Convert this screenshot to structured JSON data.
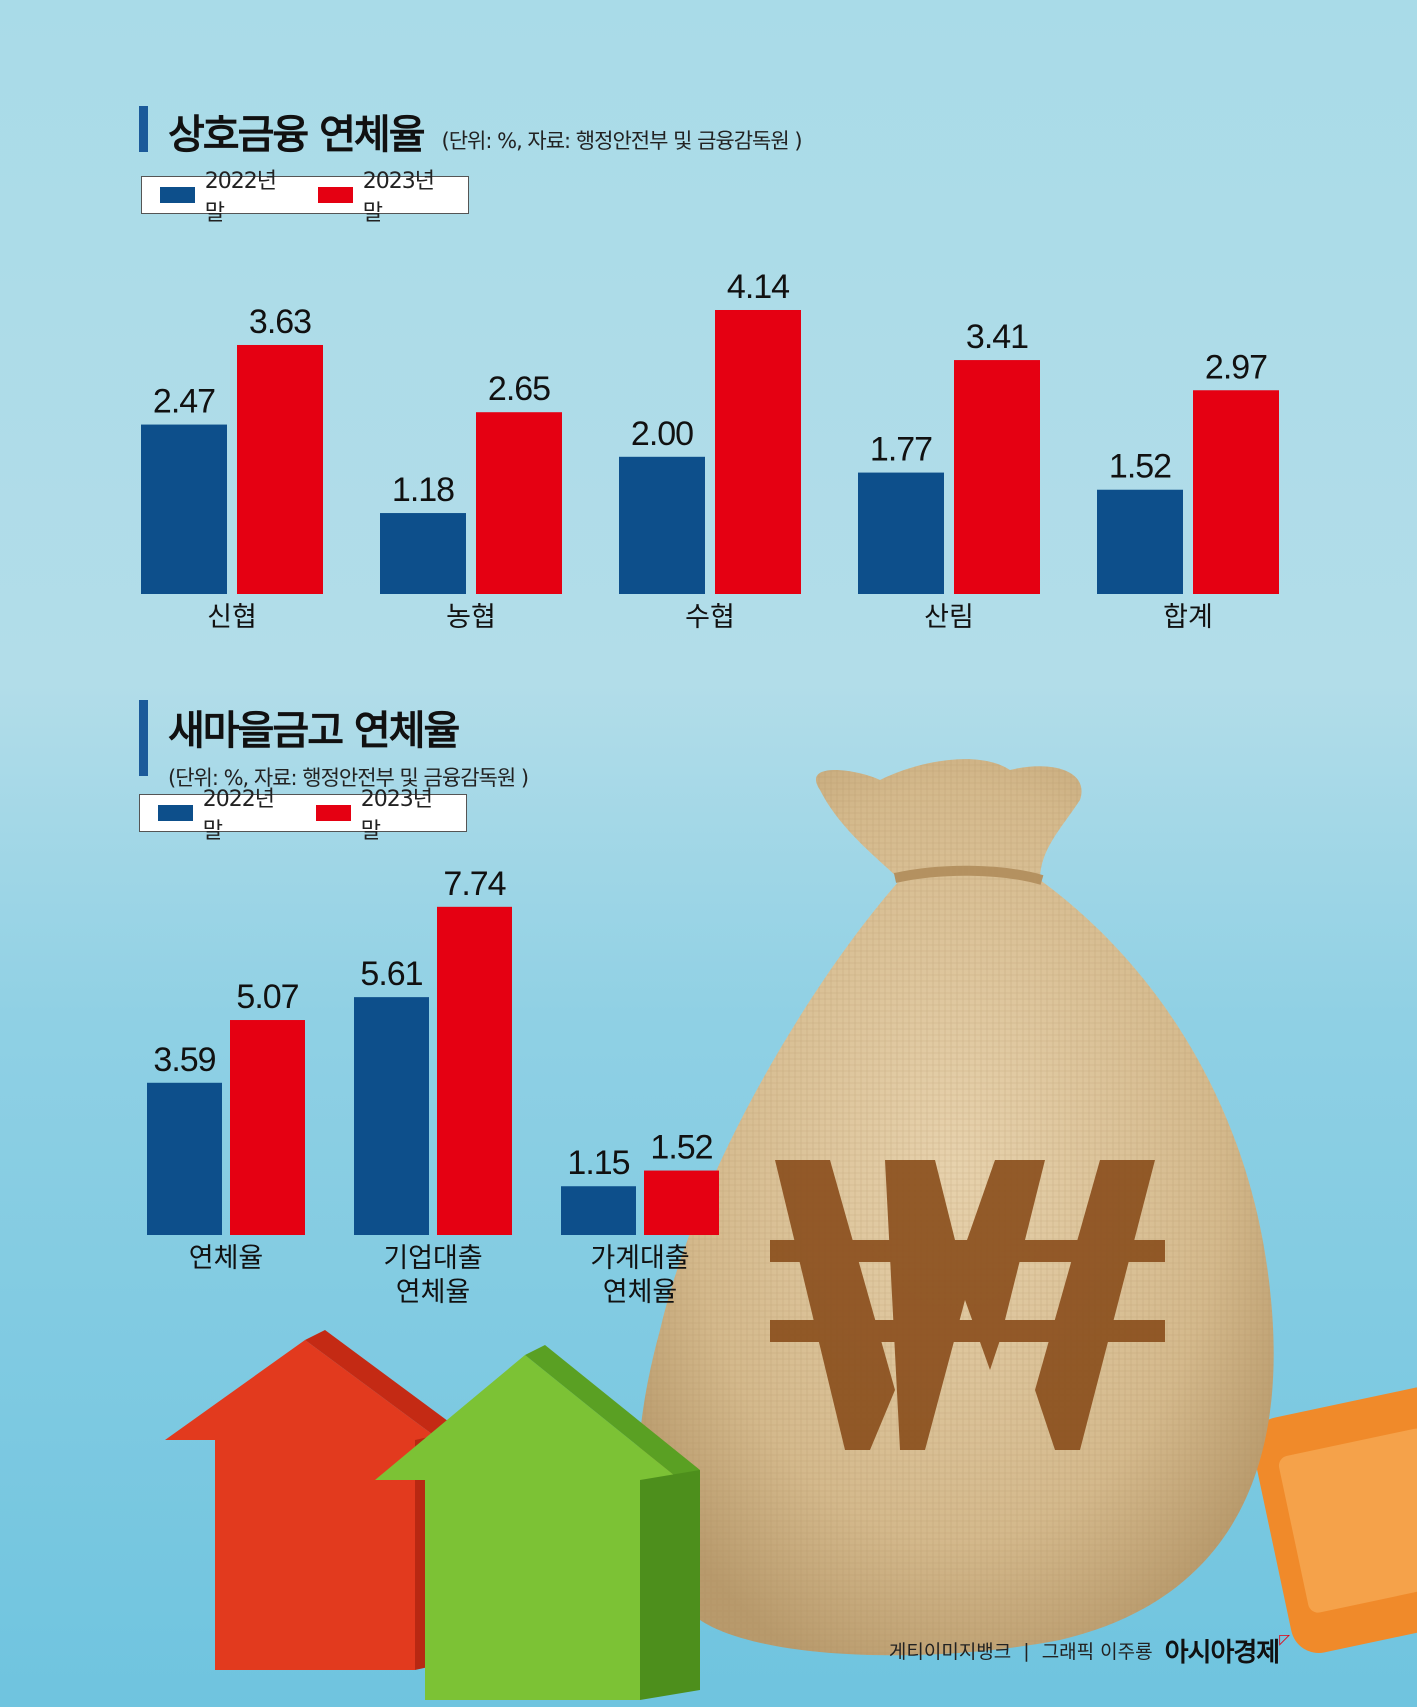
{
  "colors": {
    "y2022": "#0d4f8b",
    "y2023": "#e50012"
  },
  "legend": {
    "y2022": "2022년말",
    "y2023": "2023년말"
  },
  "credit": {
    "source": "게티이미지뱅크",
    "separator": "|",
    "graphic": "그래픽 이주룡",
    "brand": "아시아경제"
  },
  "illustration": {
    "bag_symbol": "₩"
  },
  "chart_data": [
    {
      "type": "bar",
      "title": "상호금융 연체율",
      "subtitle": "(단위: %, 자료: 행정안전부 및 금융감독원 )",
      "categories": [
        "신협",
        "농협",
        "수협",
        "산림",
        "합계"
      ],
      "series": [
        {
          "name": "2022년말",
          "values": [
            2.47,
            1.18,
            2.0,
            1.77,
            1.52
          ],
          "labels": [
            "2.47",
            "1.18",
            "2.00",
            "1.77",
            "1.52"
          ]
        },
        {
          "name": "2023년말",
          "values": [
            3.63,
            2.65,
            4.14,
            3.41,
            2.97
          ],
          "labels": [
            "3.63",
            "2.65",
            "4.14",
            "3.41",
            "2.97"
          ]
        }
      ],
      "legend_position": "top-left",
      "grid": false
    },
    {
      "type": "bar",
      "title": "새마을금고 연체율",
      "subtitle": "(단위: %, 자료: 행정안전부 및 금융감독원 )",
      "categories": [
        [
          "연체율"
        ],
        [
          "기업대출",
          "연체율"
        ],
        [
          "가계대출",
          "연체율"
        ]
      ],
      "series": [
        {
          "name": "2022년말",
          "values": [
            3.59,
            5.61,
            1.15
          ],
          "labels": [
            "3.59",
            "5.61",
            "1.15"
          ]
        },
        {
          "name": "2023년말",
          "values": [
            5.07,
            7.74,
            1.52
          ],
          "labels": [
            "5.07",
            "7.74",
            "1.52"
          ]
        }
      ],
      "legend_position": "top-left",
      "grid": false
    }
  ]
}
